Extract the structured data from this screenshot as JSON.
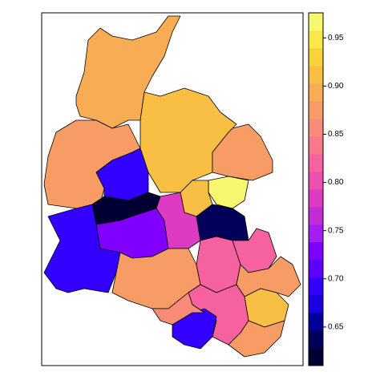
{
  "chart_data": {
    "type": "choropleth",
    "regions": [
      0.89,
      0.91,
      0.87,
      0.96,
      0.87,
      0.7,
      0.62,
      0.91,
      0.73,
      0.785,
      0.64,
      0.7,
      0.87,
      0.815,
      0.815,
      0.87,
      0.91,
      0.815,
      0.87,
      0.69,
      0.86
    ],
    "clim": [
      0.61,
      0.976
    ],
    "cticks": [
      0.65,
      {
        "value": 0.7,
        "label": "0.70"
      },
      0.75,
      {
        "value": 0.8,
        "label": "0.80"
      },
      0.85,
      {
        "value": 0.9,
        "label": "0.90"
      },
      0.95
    ],
    "palette": [
      "#000033",
      "#00005a",
      "#000099",
      "#1a00e0",
      "#3300ff",
      "#5c00ff",
      "#8000ff",
      "#a31ef0",
      "#c22ed6",
      "#dc3bc2",
      "#ee4fb0",
      "#f662a0",
      "#f87a8a",
      "#f98c78",
      "#f89c66",
      "#f8ad55",
      "#f8bf44",
      "#f8d33c",
      "#f8e84a",
      "#f8f870"
    ]
  }
}
